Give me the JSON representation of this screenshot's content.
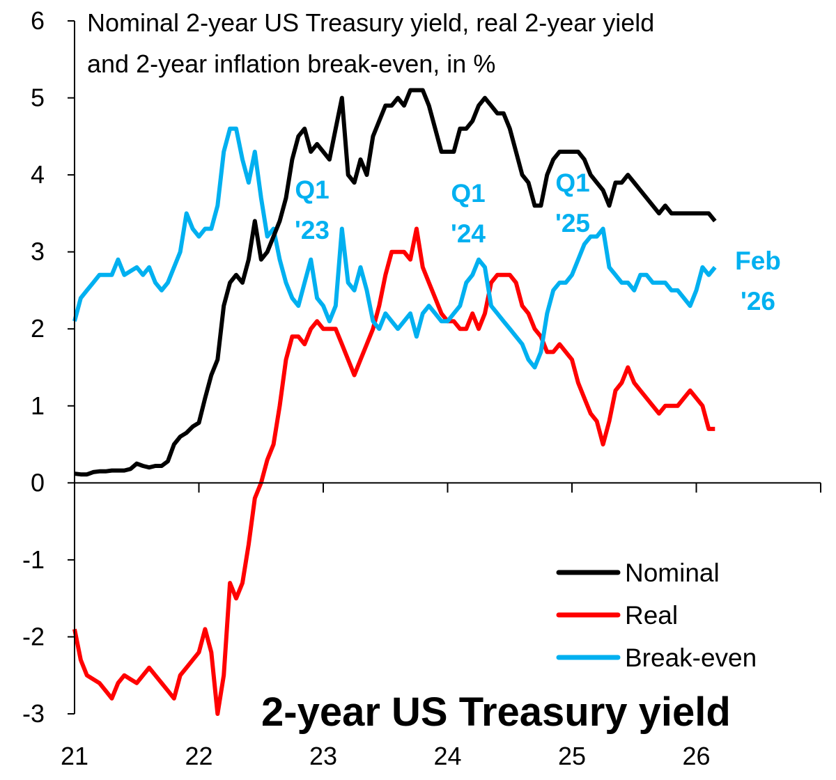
{
  "chart_data": {
    "type": "line",
    "title": "Nominal 2-year US Treasury yield, real 2-year yield and 2-year inflation break-even, in %",
    "title_lines": [
      "Nominal 2-year US Treasury yield, real 2-year yield",
      "and 2-year inflation break-even, in %"
    ],
    "subtitle": "2-year US Treasury yield",
    "xlabel": "",
    "ylabel": "",
    "xlim": [
      2021,
      2027
    ],
    "ylim": [
      -3,
      6
    ],
    "x_ticks": [
      2021,
      2022,
      2023,
      2024,
      2025,
      2026,
      2027
    ],
    "x_tick_labels": [
      "21",
      "22",
      "23",
      "24",
      "25",
      "26",
      ""
    ],
    "y_ticks": [
      -3,
      -2,
      -1,
      0,
      1,
      2,
      3,
      4,
      5,
      6
    ],
    "y_tick_labels": [
      "-3",
      "-2",
      "-1",
      "0",
      "1",
      "2",
      "3",
      "4",
      "5",
      "6"
    ],
    "grid": false,
    "legend_position": "bottom-right",
    "annotations": [
      {
        "lines": [
          "Q1",
          "'23"
        ],
        "x": 2023.0
      },
      {
        "lines": [
          "Q1",
          "'24"
        ],
        "x": 2024.0
      },
      {
        "lines": [
          "Q1",
          "'25"
        ],
        "x": 2025.0
      },
      {
        "lines": [
          "Feb",
          "'26"
        ],
        "x": 2026.15
      }
    ],
    "x": [
      2021.0,
      2021.05,
      2021.1,
      2021.15,
      2021.2,
      2021.25,
      2021.3,
      2021.35,
      2021.4,
      2021.45,
      2021.5,
      2021.55,
      2021.6,
      2021.65,
      2021.7,
      2021.75,
      2021.8,
      2021.85,
      2021.9,
      2021.95,
      2022.0,
      2022.05,
      2022.1,
      2022.15,
      2022.2,
      2022.25,
      2022.3,
      2022.35,
      2022.4,
      2022.45,
      2022.5,
      2022.55,
      2022.6,
      2022.65,
      2022.7,
      2022.75,
      2022.8,
      2022.85,
      2022.9,
      2022.95,
      2023.0,
      2023.05,
      2023.1,
      2023.15,
      2023.2,
      2023.25,
      2023.3,
      2023.35,
      2023.4,
      2023.45,
      2023.5,
      2023.55,
      2023.6,
      2023.65,
      2023.7,
      2023.75,
      2023.8,
      2023.85,
      2023.9,
      2023.95,
      2024.0,
      2024.05,
      2024.1,
      2024.15,
      2024.2,
      2024.25,
      2024.3,
      2024.35,
      2024.4,
      2024.45,
      2024.5,
      2024.55,
      2024.6,
      2024.65,
      2024.7,
      2024.75,
      2024.8,
      2024.85,
      2024.9,
      2024.95,
      2025.0,
      2025.05,
      2025.1,
      2025.15,
      2025.2,
      2025.25,
      2025.3,
      2025.35,
      2025.4,
      2025.45,
      2025.5,
      2025.55,
      2025.6,
      2025.65,
      2025.7,
      2025.75,
      2025.8,
      2025.85,
      2025.9,
      2025.95,
      2026.0,
      2026.05,
      2026.1,
      2026.15
    ],
    "series": [
      {
        "name": "Nominal",
        "color": "#000000",
        "values": [
          0.12,
          0.11,
          0.11,
          0.14,
          0.15,
          0.15,
          0.16,
          0.16,
          0.16,
          0.18,
          0.25,
          0.22,
          0.2,
          0.22,
          0.22,
          0.28,
          0.5,
          0.6,
          0.65,
          0.73,
          0.78,
          1.1,
          1.4,
          1.6,
          2.3,
          2.6,
          2.7,
          2.6,
          2.9,
          3.4,
          2.9,
          3.0,
          3.2,
          3.4,
          3.7,
          4.2,
          4.5,
          4.6,
          4.3,
          4.4,
          4.3,
          4.2,
          4.6,
          5.0,
          4.0,
          3.9,
          4.2,
          4.0,
          4.5,
          4.7,
          4.9,
          4.9,
          5.0,
          4.9,
          5.1,
          5.1,
          5.1,
          4.9,
          4.6,
          4.3,
          4.3,
          4.3,
          4.6,
          4.6,
          4.7,
          4.9,
          5.0,
          4.9,
          4.8,
          4.8,
          4.6,
          4.3,
          4.0,
          3.9,
          3.6,
          3.6,
          4.0,
          4.2,
          4.3,
          4.3,
          4.3,
          4.3,
          4.2,
          4.0,
          3.9,
          3.8,
          3.6,
          3.9,
          3.9,
          4.0,
          3.9,
          3.8,
          3.7,
          3.6,
          3.5,
          3.6,
          3.5,
          3.5,
          3.5,
          3.5,
          3.5,
          3.5,
          3.5,
          3.4
        ]
      },
      {
        "name": "Real",
        "color": "#ff0000",
        "values": [
          -1.9,
          -2.3,
          -2.5,
          -2.55,
          -2.6,
          -2.7,
          -2.8,
          -2.6,
          -2.5,
          -2.55,
          -2.6,
          -2.5,
          -2.4,
          -2.5,
          -2.6,
          -2.7,
          -2.8,
          -2.5,
          -2.4,
          -2.3,
          -2.2,
          -1.9,
          -2.2,
          -3.0,
          -2.5,
          -1.3,
          -1.5,
          -1.3,
          -0.8,
          -0.2,
          0.0,
          0.3,
          0.5,
          1.0,
          1.6,
          1.9,
          1.9,
          1.8,
          2.0,
          2.1,
          2.0,
          2.0,
          2.0,
          1.8,
          1.6,
          1.4,
          1.6,
          1.8,
          2.0,
          2.3,
          2.7,
          3.0,
          3.0,
          3.0,
          2.9,
          3.3,
          2.8,
          2.6,
          2.4,
          2.2,
          2.1,
          2.1,
          2.0,
          2.0,
          2.2,
          2.0,
          2.2,
          2.6,
          2.7,
          2.7,
          2.7,
          2.6,
          2.3,
          2.2,
          2.0,
          1.9,
          1.7,
          1.7,
          1.8,
          1.7,
          1.6,
          1.3,
          1.1,
          0.9,
          0.8,
          0.5,
          0.8,
          1.2,
          1.3,
          1.5,
          1.3,
          1.2,
          1.1,
          1.0,
          0.9,
          1.0,
          1.0,
          1.0,
          1.1,
          1.2,
          1.1,
          1.0,
          0.7,
          0.7
        ]
      },
      {
        "name": "Break-even",
        "color": "#00b0f0",
        "values": [
          2.1,
          2.4,
          2.5,
          2.6,
          2.7,
          2.7,
          2.7,
          2.9,
          2.7,
          2.75,
          2.8,
          2.7,
          2.8,
          2.6,
          2.5,
          2.6,
          2.8,
          3.0,
          3.5,
          3.3,
          3.2,
          3.3,
          3.3,
          3.6,
          4.3,
          4.6,
          4.6,
          4.2,
          3.9,
          4.3,
          3.7,
          3.2,
          3.3,
          2.9,
          2.6,
          2.4,
          2.3,
          2.6,
          2.9,
          2.4,
          2.3,
          2.1,
          2.3,
          3.3,
          2.6,
          2.5,
          2.8,
          2.5,
          2.1,
          2.0,
          2.2,
          2.1,
          2.0,
          2.1,
          2.2,
          1.9,
          2.2,
          2.3,
          2.2,
          2.1,
          2.1,
          2.2,
          2.3,
          2.6,
          2.7,
          2.9,
          2.8,
          2.3,
          2.2,
          2.1,
          2.0,
          1.9,
          1.8,
          1.6,
          1.5,
          1.7,
          2.2,
          2.5,
          2.6,
          2.6,
          2.7,
          2.9,
          3.1,
          3.2,
          3.2,
          3.3,
          2.8,
          2.7,
          2.6,
          2.6,
          2.5,
          2.7,
          2.7,
          2.6,
          2.6,
          2.6,
          2.5,
          2.5,
          2.4,
          2.3,
          2.5,
          2.8,
          2.7,
          2.8
        ]
      }
    ]
  }
}
